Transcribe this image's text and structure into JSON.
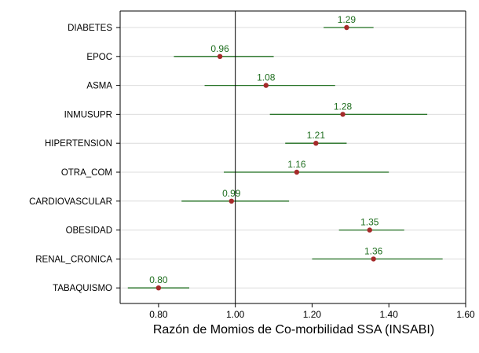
{
  "chart_data": {
    "type": "forest",
    "title": "",
    "xlabel": "Razón de Momios de Co-morbilidad SSA (INSABI)",
    "ylabel": "",
    "xlim": [
      0.7,
      1.6
    ],
    "xticks": [
      0.8,
      1.0,
      1.2,
      1.4,
      1.6
    ],
    "xtick_labels": [
      "0.80",
      "1.00",
      "1.20",
      "1.40",
      "1.60"
    ],
    "reference_line": 1.0,
    "grid": "horizontal",
    "legend": "none",
    "colors": {
      "point": "#a52a2a",
      "ci_line": "#1f6e1f",
      "label": "#1f6e1f",
      "grid": "#dcdcdc",
      "axis": "#000000"
    },
    "categories": [
      "DIABETES",
      "EPOC",
      "ASMA",
      "INMUSUPR",
      "HIPERTENSION",
      "OTRA_COM",
      "CARDIOVASCULAR",
      "OBESIDAD",
      "RENAL_CRONICA",
      "TABAQUISMO"
    ],
    "values": [
      1.29,
      0.96,
      1.08,
      1.28,
      1.21,
      1.16,
      0.99,
      1.35,
      1.36,
      0.8
    ],
    "value_labels": [
      "1.29",
      "0.96",
      "1.08",
      "1.28",
      "1.21",
      "1.16",
      "0.99",
      "1.35",
      "1.36",
      "0.80"
    ],
    "ci_low": [
      1.23,
      0.84,
      0.92,
      1.09,
      1.13,
      0.97,
      0.86,
      1.27,
      1.2,
      0.72
    ],
    "ci_high": [
      1.36,
      1.1,
      1.26,
      1.5,
      1.29,
      1.4,
      1.14,
      1.44,
      1.54,
      0.88
    ]
  }
}
